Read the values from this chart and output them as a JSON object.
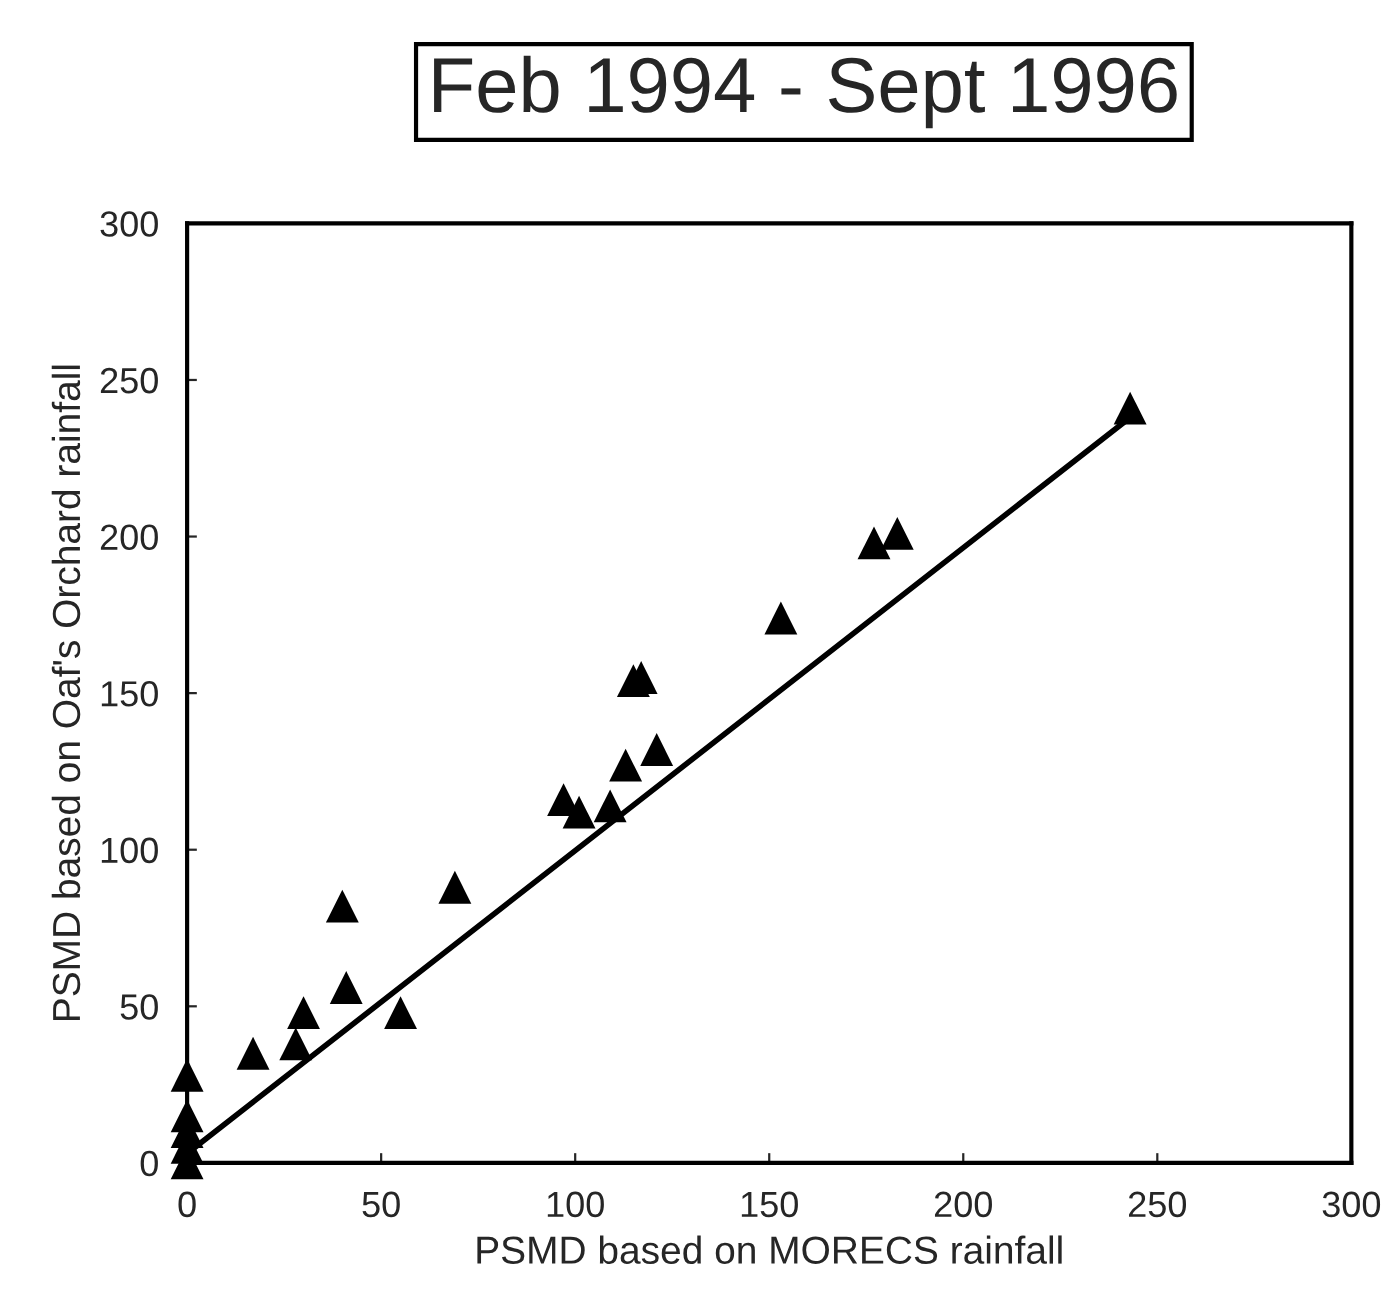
{
  "chart_data": {
    "type": "scatter",
    "title": "Feb 1994 - Sept 1996",
    "xlabel": "PSMD based on MORECS rainfall",
    "ylabel": "PSMD based on Oaf's Orchard rainfall",
    "series": [
      {
        "color": "#000000",
        "marker": "triangle",
        "x": [
          0,
          0,
          0,
          0,
          0,
          17,
          28,
          30,
          40,
          41,
          55,
          69,
          97,
          101,
          109,
          113,
          115,
          117,
          121,
          153,
          177,
          183,
          243
        ],
        "values": [
          0,
          5,
          10,
          15,
          28,
          35,
          38,
          48,
          82,
          56,
          48,
          88,
          116,
          112,
          114,
          127,
          154,
          155,
          132,
          174,
          198,
          201,
          241
        ]
      },
      {
        "type": "line",
        "color": "#000000",
        "marker": "none",
        "line_style": "solid",
        "x": [
          0,
          243
        ],
        "values": [
          3,
          238
        ]
      }
    ],
    "xlim": [
      0,
      300
    ],
    "ylim": [
      0,
      300
    ],
    "xticks": [
      0,
      50,
      100,
      150,
      200,
      250,
      300
    ],
    "yticks": [
      0,
      50,
      100,
      150,
      200,
      250,
      300
    ],
    "grid": false,
    "legend": false
  }
}
